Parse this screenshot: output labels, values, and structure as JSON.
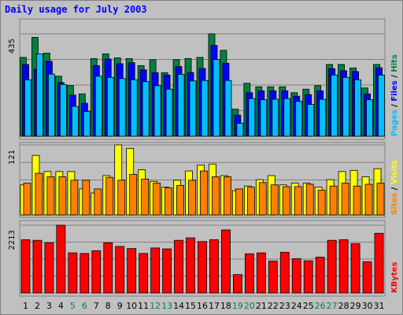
{
  "chart_data": {
    "type": "bar",
    "title": "Daily usage for July 2003",
    "categories": [
      "1",
      "2",
      "3",
      "4",
      "5",
      "6",
      "7",
      "8",
      "9",
      "10",
      "11",
      "12",
      "13",
      "14",
      "15",
      "16",
      "17",
      "18",
      "19",
      "20",
      "21",
      "22",
      "23",
      "24",
      "25",
      "26",
      "27",
      "28",
      "29",
      "30",
      "31"
    ],
    "weekend_days": [
      "5",
      "6",
      "12",
      "13",
      "19",
      "20",
      "26",
      "27"
    ],
    "panels": [
      {
        "name": "hits-files-pages",
        "ymax_label": "435",
        "ymax": 435,
        "right_labels": [
          "Pages",
          "Files",
          "Hits"
        ],
        "series": [
          {
            "name": "Hits",
            "color": "#008040",
            "values": [
              335,
              420,
              353,
              255,
              215,
              180,
              330,
              350,
              333,
              330,
              300,
              325,
              270,
              325,
              330,
              335,
              435,
              365,
              115,
              225,
              210,
              210,
              210,
              185,
              200,
              215,
              305,
              305,
              290,
              205,
              305
            ]
          },
          {
            "name": "Files",
            "color": "#0000ff",
            "values": [
              305,
              285,
              318,
              228,
              175,
              140,
              300,
              328,
              308,
              313,
              282,
              270,
              260,
              296,
              271,
              288,
              386,
              310,
              90,
              185,
              193,
              193,
              193,
              170,
              177,
              193,
              287,
              278,
              275,
              180,
              291
            ]
          },
          {
            "name": "Pages",
            "color": "#00bfff",
            "values": [
              240,
              350,
              264,
              220,
              127,
              105,
              255,
              250,
              245,
              240,
              232,
              215,
              200,
              263,
              235,
              237,
              326,
              237,
              55,
              160,
              155,
              157,
              160,
              148,
              135,
              157,
              260,
              250,
              240,
              155,
              260
            ]
          }
        ]
      },
      {
        "name": "visits-sites",
        "ymax_label": "121",
        "ymax": 121,
        "right_labels": [
          "Sites",
          "Visits"
        ],
        "series": [
          {
            "name": "Visits",
            "color": "#ffff00",
            "values": [
              52,
              103,
              75,
              75,
              75,
              45,
              38,
              68,
              121,
              115,
              78,
              58,
              48,
              60,
              76,
              86,
              88,
              68,
              42,
              50,
              61,
              68,
              52,
              55,
              55,
              48,
              61,
              75,
              77,
              66,
              80
            ]
          },
          {
            "name": "Sites",
            "color": "#ff8000",
            "values": [
              55,
              72,
              66,
              66,
              60,
              60,
              45,
              65,
              60,
              70,
              62,
              55,
              47,
              51,
              60,
              76,
              66,
              66,
              45,
              48,
              56,
              52,
              49,
              49,
              53,
              43,
              50,
              55,
              50,
              53,
              55
            ]
          }
        ]
      },
      {
        "name": "kbytes",
        "ymax_label": "2213",
        "ymax": 2213,
        "right_labels": [
          "KBytes"
        ],
        "series": [
          {
            "name": "KBytes",
            "color": "#ff0000",
            "values": [
              1740,
              1720,
              1640,
              2213,
              1310,
              1290,
              1380,
              1640,
              1520,
              1450,
              1290,
              1470,
              1440,
              1720,
              1800,
              1680,
              1740,
              2060,
              600,
              1280,
              1310,
              1040,
              1330,
              1120,
              1050,
              1170,
              1720,
              1740,
              1610,
              1020,
              1950
            ]
          }
        ]
      }
    ]
  }
}
